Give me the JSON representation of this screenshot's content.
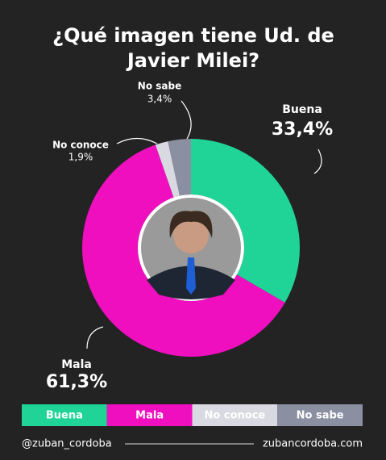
{
  "chart_data": {
    "type": "donut",
    "title": "¿Qué imagen tiene Ud. de Javier Milei?",
    "categories": [
      "Buena",
      "Mala",
      "No conoce",
      "No sabe"
    ],
    "values": [
      33.4,
      61.3,
      1.9,
      3.4
    ],
    "value_labels": [
      "33,4%",
      "61,3%",
      "1,9%",
      "3,4%"
    ],
    "colors": [
      "#1fd496",
      "#ef0fbf",
      "#d9d9e1",
      "#8a8fa1"
    ]
  },
  "footer": {
    "left": "@zuban_cordoba",
    "right": "zubancordoba.com"
  }
}
